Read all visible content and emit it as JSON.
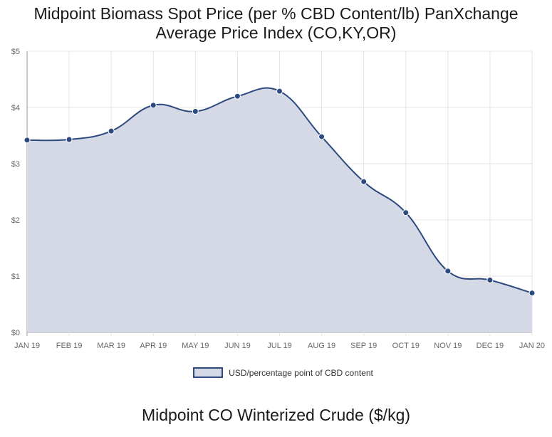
{
  "page": {
    "title_line1": "Midpoint Biomass Spot Price (per % CBD Content/lb) PanXchange",
    "title_line2": "Average Price Index (CO,KY,OR)",
    "footer_title": "Midpoint CO Winterized Crude ($/kg)"
  },
  "chart_data": {
    "type": "area",
    "title": "Midpoint Biomass Spot Price (per % CBD Content/lb) PanXchange Average Price Index (CO,KY,OR)",
    "categories": [
      "JAN 19",
      "FEB 19",
      "MAR 19",
      "APR 19",
      "MAY 19",
      "JUN 19",
      "JUL 19",
      "AUG 19",
      "SEP 19",
      "OCT 19",
      "NOV 19",
      "DEC 19",
      "JAN 20"
    ],
    "series": [
      {
        "name": "USD/percentage point of CBD content",
        "values": [
          3.42,
          3.43,
          3.58,
          4.04,
          3.93,
          4.2,
          4.29,
          3.48,
          2.68,
          2.13,
          1.09,
          0.93,
          0.7
        ],
        "line_color": "#2d4a7f",
        "fill_color": "#d5d9e6"
      }
    ],
    "y_ticks": [
      "$0",
      "$1",
      "$2",
      "$3",
      "$4",
      "$5"
    ],
    "ylim": [
      0,
      5
    ],
    "grid": true,
    "legend_position": "bottom"
  }
}
